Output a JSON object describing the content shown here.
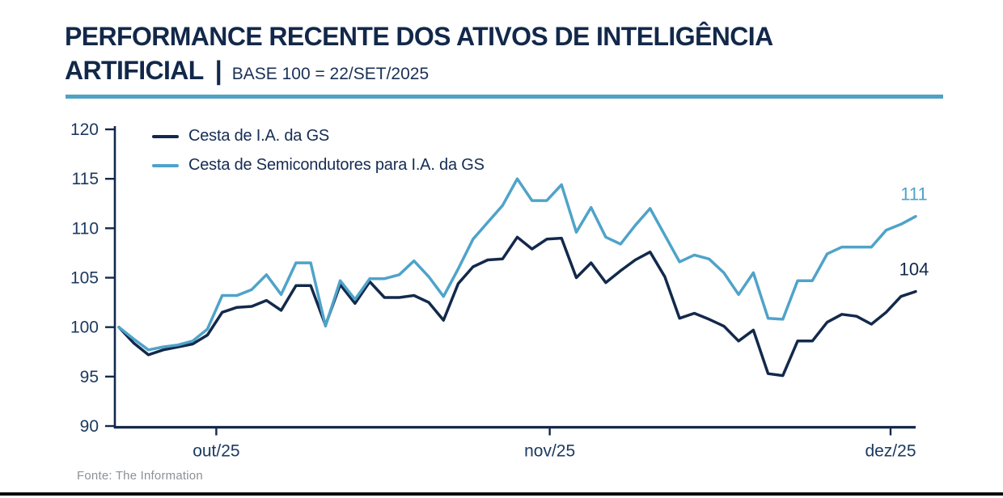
{
  "header": {
    "title_line1": "PERFORMANCE RECENTE DOS ATIVOS DE INTELIGÊNCIA",
    "title_line2": "ARTIFICIAL",
    "title_separator": "|",
    "subtitle": "BASE 100 = 22/SET/2025"
  },
  "colors": {
    "navy": "#13294B",
    "light_blue": "#4FA3C9",
    "divider_blue": "#4FA1C6",
    "axis": "#13294B",
    "tick_label": "#1C3A60",
    "source_gray": "#8C9196",
    "bottom_bar": "#0B0B0B"
  },
  "chart_data": {
    "type": "line",
    "title": "Performance recente dos ativos de inteligência artificial",
    "base_note": "BASE 100 = 22/SET/2025",
    "ylim": [
      90,
      120
    ],
    "yticks": [
      120,
      115,
      110,
      105,
      100,
      95,
      90
    ],
    "xticks": [
      {
        "label": "out/25",
        "index": 6.6
      },
      {
        "label": "nov/25",
        "index": 29.2
      },
      {
        "label": "dez/25",
        "index": 52.3
      }
    ],
    "grid": false,
    "legend_position": "top-left",
    "series": [
      {
        "name": "Cesta de I.A. da GS",
        "color": "#13294B",
        "end_label": "104",
        "values": [
          100.0,
          98.4,
          97.2,
          97.7,
          98.0,
          98.3,
          99.2,
          101.5,
          102.0,
          102.1,
          102.7,
          101.7,
          104.2,
          104.2,
          100.2,
          104.3,
          102.4,
          104.6,
          103.0,
          103.0,
          103.2,
          102.5,
          100.7,
          104.4,
          106.1,
          106.8,
          106.9,
          109.1,
          107.9,
          108.9,
          109.0,
          105.0,
          106.5,
          104.5,
          105.7,
          106.8,
          107.6,
          105.1,
          100.9,
          101.4,
          100.8,
          100.1,
          98.6,
          99.7,
          95.3,
          95.1,
          98.6,
          98.6,
          100.5,
          101.3,
          101.1,
          100.3,
          101.5,
          103.1,
          103.6
        ]
      },
      {
        "name": "Cesta de Semicondutores para I.A. da GS",
        "color": "#4FA3C9",
        "end_label": "111",
        "values": [
          100.0,
          98.8,
          97.7,
          98.0,
          98.2,
          98.6,
          99.8,
          103.2,
          103.2,
          103.8,
          105.3,
          103.3,
          106.5,
          106.5,
          100.1,
          104.7,
          102.8,
          104.9,
          104.9,
          105.3,
          106.7,
          105.1,
          103.1,
          105.9,
          108.9,
          110.6,
          112.3,
          115.0,
          112.8,
          112.8,
          114.4,
          109.6,
          112.1,
          109.1,
          108.4,
          110.3,
          112.0,
          109.3,
          106.6,
          107.3,
          106.9,
          105.5,
          103.3,
          105.5,
          100.9,
          100.8,
          104.7,
          104.7,
          107.4,
          108.1,
          108.1,
          108.1,
          109.8,
          110.4,
          111.2
        ]
      }
    ]
  },
  "footer": {
    "source": "Fonte: The Information"
  }
}
